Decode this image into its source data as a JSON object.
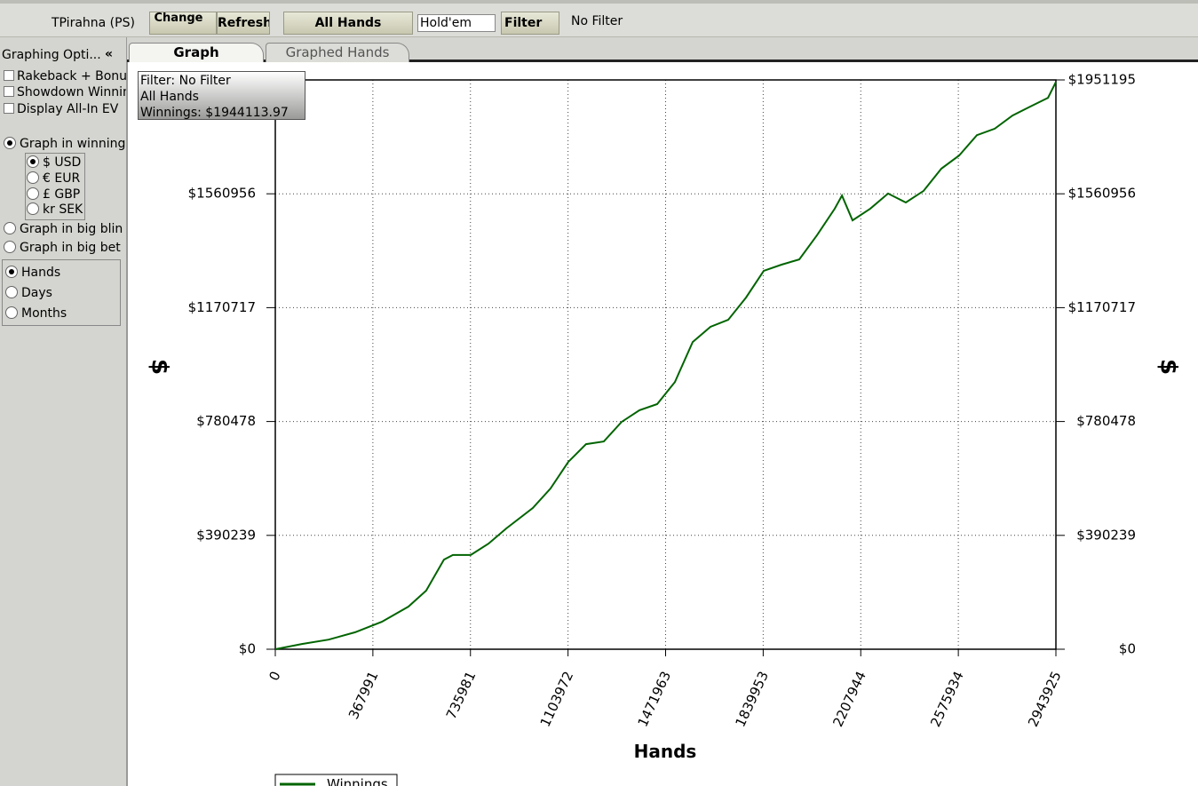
{
  "toolbar": {
    "player": "TPirahna (PS)",
    "change": "Change",
    "refresh": "Refresh",
    "all_hands": "All Hands",
    "game": "Hold'em",
    "filter": "Filter",
    "filter_status": "No Filter"
  },
  "sidebar": {
    "title": "Graphing Opti...",
    "collapse": "«",
    "checkboxes": [
      "Rakeback + Bonu",
      "Showdown Winnin",
      "Display All-In EV"
    ],
    "winnings": "Graph in winning",
    "currencies": [
      "$ USD",
      "€ EUR",
      "£ GBP",
      "kr SEK"
    ],
    "big_blinds": "Graph in big blin",
    "big_bets": "Graph in big bet",
    "x_units": [
      "Hands",
      "Days",
      "Months"
    ]
  },
  "tabs": [
    "Graph",
    "Graphed Hands"
  ],
  "tooltip": [
    "Filter: No Filter",
    "All Hands",
    "Winnings: $1944113.97"
  ],
  "chart_data": {
    "type": "line",
    "x_label": "Hands",
    "y_label": "$",
    "y2_label": "$",
    "xlim": [
      0,
      2943925
    ],
    "xticks": [
      0,
      367991,
      735981,
      1103972,
      1471963,
      1839953,
      2207944,
      2575934,
      2943925
    ],
    "ylim": [
      0,
      1951195
    ],
    "yticks": [
      {
        "value": 0,
        "label": "$0"
      },
      {
        "value": 390239,
        "label": "$390239"
      },
      {
        "value": 780478,
        "label": "$780478"
      },
      {
        "value": 1170717,
        "label": "$1170717"
      },
      {
        "value": 1560956,
        "label": "$1560956"
      },
      {
        "value": 1951195,
        "label": "$1951195"
      }
    ],
    "grid": true,
    "x": [
      0,
      100000,
      201000,
      301000,
      402000,
      502000,
      569000,
      636000,
      670000,
      737000,
      804000,
      871000,
      971000,
      1038000,
      1105000,
      1172000,
      1239000,
      1306000,
      1373000,
      1440000,
      1507000,
      1574000,
      1641000,
      1708000,
      1775000,
      1842000,
      1909000,
      1976000,
      2043000,
      2110000,
      2137000,
      2177000,
      2244000,
      2311000,
      2378000,
      2445000,
      2512000,
      2579000,
      2646000,
      2713000,
      2780000,
      2847000,
      2914000,
      2943925
    ],
    "series": [
      {
        "name": "Winnings",
        "color": "#006400",
        "values": [
          0,
          18000,
          33000,
          58000,
          94000,
          146000,
          201000,
          307000,
          323000,
          323000,
          362000,
          414000,
          484000,
          551000,
          642000,
          703000,
          712000,
          779000,
          819000,
          840000,
          916000,
          1053000,
          1105000,
          1129000,
          1205000,
          1297000,
          1318000,
          1336000,
          1419000,
          1510000,
          1555000,
          1470000,
          1510000,
          1562000,
          1531000,
          1571000,
          1647000,
          1692000,
          1762000,
          1784000,
          1829000,
          1860000,
          1890000,
          1944114
        ]
      }
    ]
  }
}
